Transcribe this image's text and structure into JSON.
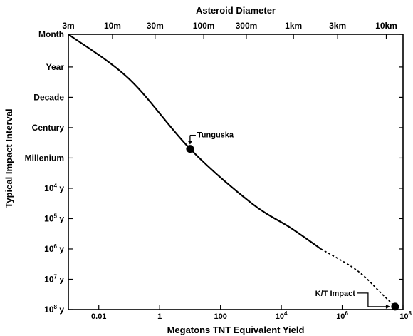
{
  "chart_data": {
    "type": "line",
    "top_axis": {
      "title": "Asteroid Diameter",
      "ticks": [
        {
          "label": "3m",
          "x_log10_mt": -3.0
        },
        {
          "label": "10m",
          "x_log10_mt": -1.55
        },
        {
          "label": "30m",
          "x_log10_mt": -0.15
        },
        {
          "label": "100m",
          "x_log10_mt": 1.45
        },
        {
          "label": "300m",
          "x_log10_mt": 2.85
        },
        {
          "label": "1km",
          "x_log10_mt": 4.4
        },
        {
          "label": "3km",
          "x_log10_mt": 5.85
        },
        {
          "label": "10km",
          "x_log10_mt": 7.45
        }
      ]
    },
    "x_axis": {
      "title": "Megatons TNT Equivalent Yield",
      "scale": "log",
      "range": [
        0.001,
        100000000
      ],
      "ticks": [
        {
          "label": "0.01",
          "value": 0.01
        },
        {
          "label": "1",
          "value": 1
        },
        {
          "label": "100",
          "value": 100
        },
        {
          "label": "10^4",
          "value": 10000
        },
        {
          "label": "10^6",
          "value": 1000000
        },
        {
          "label": "10^8",
          "value": 100000000
        }
      ]
    },
    "y_axis": {
      "title": "Typical Impact Interval",
      "scale": "log",
      "unit": "years",
      "range": [
        0.0833,
        100000000
      ],
      "ticks": [
        {
          "label": "Month",
          "value": 0.0833
        },
        {
          "label": "Year",
          "value": 1
        },
        {
          "label": "Decade",
          "value": 10
        },
        {
          "label": "Century",
          "value": 100
        },
        {
          "label": "Millenium",
          "value": 1000
        },
        {
          "label": "10^4 y",
          "value": 10000
        },
        {
          "label": "10^5 y",
          "value": 100000
        },
        {
          "label": "10^6 y",
          "value": 1000000
        },
        {
          "label": "10^7 y",
          "value": 10000000
        },
        {
          "label": "10^8 y",
          "value": 100000000
        }
      ]
    },
    "series": [
      {
        "style": "solid",
        "points": [
          {
            "x": 0.001,
            "y": 0.0833
          },
          {
            "x": 0.1,
            "y": 2.5
          },
          {
            "x": 10,
            "y": 500
          },
          {
            "x": 1000,
            "y": 30000
          },
          {
            "x": 20000,
            "y": 200000
          },
          {
            "x": 200000,
            "y": 1000000
          }
        ]
      },
      {
        "style": "dashed",
        "points": [
          {
            "x": 200000,
            "y": 1000000
          },
          {
            "x": 3000000,
            "y": 5000000
          },
          {
            "x": 20000000,
            "y": 30000000
          },
          {
            "x": 55000000,
            "y": 80000000
          }
        ]
      }
    ],
    "annotations": [
      {
        "label": "Tunguska",
        "x": 10,
        "y": 500
      },
      {
        "label": "K/T Impact",
        "x": 55000000,
        "y": 80000000
      }
    ],
    "grid": false
  }
}
